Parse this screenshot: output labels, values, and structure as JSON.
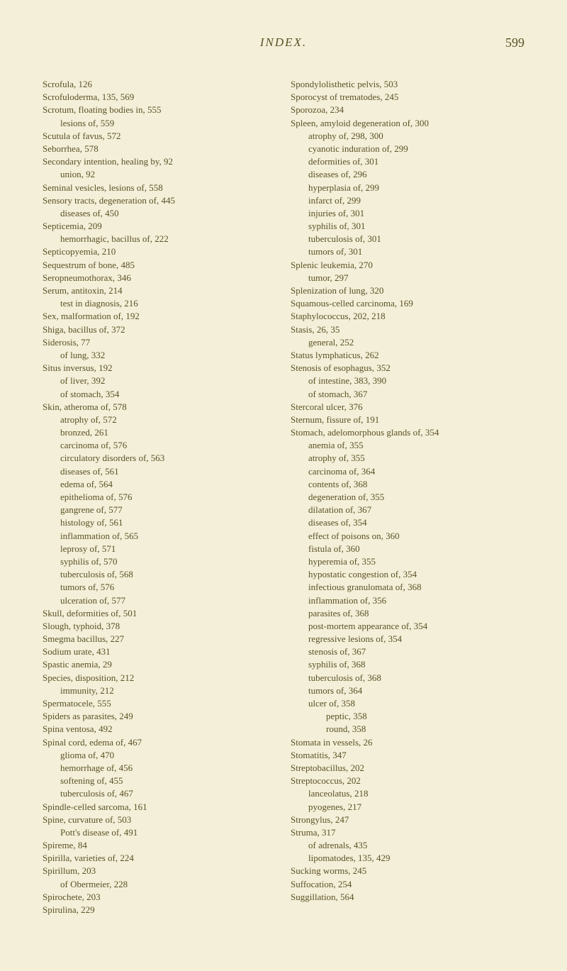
{
  "header": {
    "title": "INDEX.",
    "pageNumber": "599"
  },
  "leftColumn": [
    {
      "text": "Scrofula, 126",
      "indent": 0
    },
    {
      "text": "Scrofuloderma, 135, 569",
      "indent": 0
    },
    {
      "text": "Scrotum, floating bodies in, 555",
      "indent": 0
    },
    {
      "text": "lesions of, 559",
      "indent": 1
    },
    {
      "text": "Scutula of favus, 572",
      "indent": 0
    },
    {
      "text": "Seborrhea, 578",
      "indent": 0
    },
    {
      "text": "Secondary intention, healing by, 92",
      "indent": 0
    },
    {
      "text": "union, 92",
      "indent": 1
    },
    {
      "text": "Seminal vesicles, lesions of, 558",
      "indent": 0
    },
    {
      "text": "Sensory tracts, degeneration of, 445",
      "indent": 0
    },
    {
      "text": "diseases of, 450",
      "indent": 1
    },
    {
      "text": "Septicemia, 209",
      "indent": 0
    },
    {
      "text": "hemorrhagic, bacillus of, 222",
      "indent": 1
    },
    {
      "text": "Septicopyemia, 210",
      "indent": 0
    },
    {
      "text": "Sequestrum of bone, 485",
      "indent": 0
    },
    {
      "text": "Seropneumothorax, 346",
      "indent": 0
    },
    {
      "text": "Serum, antitoxin, 214",
      "indent": 0
    },
    {
      "text": "test in diagnosis, 216",
      "indent": 1
    },
    {
      "text": "Sex, malformation of, 192",
      "indent": 0
    },
    {
      "text": "Shiga, bacillus of, 372",
      "indent": 0
    },
    {
      "text": "Siderosis, 77",
      "indent": 0
    },
    {
      "text": "of lung, 332",
      "indent": 1
    },
    {
      "text": "Situs inversus, 192",
      "indent": 0
    },
    {
      "text": "of liver, 392",
      "indent": 1
    },
    {
      "text": "of stomach, 354",
      "indent": 1
    },
    {
      "text": "Skin, atheroma of, 578",
      "indent": 0
    },
    {
      "text": "atrophy of, 572",
      "indent": 1
    },
    {
      "text": "bronzed, 261",
      "indent": 1
    },
    {
      "text": "carcinoma of, 576",
      "indent": 1
    },
    {
      "text": "circulatory disorders of, 563",
      "indent": 1
    },
    {
      "text": "diseases of, 561",
      "indent": 1
    },
    {
      "text": "edema of, 564",
      "indent": 1
    },
    {
      "text": "epithelioma of, 576",
      "indent": 1
    },
    {
      "text": "gangrene of, 577",
      "indent": 1
    },
    {
      "text": "histology of, 561",
      "indent": 1
    },
    {
      "text": "inflammation of, 565",
      "indent": 1
    },
    {
      "text": "leprosy of, 571",
      "indent": 1
    },
    {
      "text": "syphilis of, 570",
      "indent": 1
    },
    {
      "text": "tuberculosis of, 568",
      "indent": 1
    },
    {
      "text": "tumors of, 576",
      "indent": 1
    },
    {
      "text": "ulceration of, 577",
      "indent": 1
    },
    {
      "text": "Skull, deformities of, 501",
      "indent": 0
    },
    {
      "text": "Slough, typhoid, 378",
      "indent": 0
    },
    {
      "text": "Smegma bacillus, 227",
      "indent": 0
    },
    {
      "text": "Sodium urate, 431",
      "indent": 0
    },
    {
      "text": "Spastic anemia, 29",
      "indent": 0
    },
    {
      "text": "Species, disposition, 212",
      "indent": 0
    },
    {
      "text": "immunity, 212",
      "indent": 1
    },
    {
      "text": "Spermatocele, 555",
      "indent": 0
    },
    {
      "text": "Spiders as parasites, 249",
      "indent": 0
    },
    {
      "text": "Spina ventosa, 492",
      "indent": 0
    },
    {
      "text": "Spinal cord, edema of, 467",
      "indent": 0
    },
    {
      "text": "glioma of, 470",
      "indent": 1
    },
    {
      "text": "hemorrhage of, 456",
      "indent": 1
    },
    {
      "text": "softening of, 455",
      "indent": 1
    },
    {
      "text": "tuberculosis of, 467",
      "indent": 1
    },
    {
      "text": "Spindle-celled sarcoma, 161",
      "indent": 0
    },
    {
      "text": "Spine, curvature of, 503",
      "indent": 0
    },
    {
      "text": "Pott's disease of, 491",
      "indent": 1
    },
    {
      "text": "Spireme, 84",
      "indent": 0
    },
    {
      "text": "Spirilla, varieties of, 224",
      "indent": 0
    },
    {
      "text": "Spirillum, 203",
      "indent": 0
    },
    {
      "text": "of Obermeier, 228",
      "indent": 1
    },
    {
      "text": "Spirochete, 203",
      "indent": 0
    },
    {
      "text": "Spirulina, 229",
      "indent": 0
    }
  ],
  "rightColumn": [
    {
      "text": "Spondylolisthetic pelvis, 503",
      "indent": 0
    },
    {
      "text": "Sporocyst of trematodes, 245",
      "indent": 0
    },
    {
      "text": "Sporozoa, 234",
      "indent": 0
    },
    {
      "text": "Spleen, amyloid degeneration of, 300",
      "indent": 0
    },
    {
      "text": "atrophy of, 298, 300",
      "indent": 1
    },
    {
      "text": "cyanotic induration of, 299",
      "indent": 1
    },
    {
      "text": "deformities of, 301",
      "indent": 1
    },
    {
      "text": "diseases of, 296",
      "indent": 1
    },
    {
      "text": "hyperplasia of, 299",
      "indent": 1
    },
    {
      "text": "infarct of, 299",
      "indent": 1
    },
    {
      "text": "injuries of, 301",
      "indent": 1
    },
    {
      "text": "syphilis of, 301",
      "indent": 1
    },
    {
      "text": "tuberculosis of, 301",
      "indent": 1
    },
    {
      "text": "tumors of, 301",
      "indent": 1
    },
    {
      "text": "Splenic leukemia, 270",
      "indent": 0
    },
    {
      "text": "tumor, 297",
      "indent": 1
    },
    {
      "text": "Splenization of lung, 320",
      "indent": 0
    },
    {
      "text": "Squamous-celled carcinoma, 169",
      "indent": 0
    },
    {
      "text": "Staphylococcus, 202, 218",
      "indent": 0
    },
    {
      "text": "Stasis, 26, 35",
      "indent": 0
    },
    {
      "text": "general, 252",
      "indent": 1
    },
    {
      "text": "Status lymphaticus, 262",
      "indent": 0
    },
    {
      "text": "Stenosis of esophagus, 352",
      "indent": 0
    },
    {
      "text": "of intestine, 383, 390",
      "indent": 1
    },
    {
      "text": "of stomach, 367",
      "indent": 1
    },
    {
      "text": "Stercoral ulcer, 376",
      "indent": 0
    },
    {
      "text": "Sternum, fissure of, 191",
      "indent": 0
    },
    {
      "text": "Stomach, adelomorphous glands of, 354",
      "indent": 0
    },
    {
      "text": "anemia of, 355",
      "indent": 1
    },
    {
      "text": "atrophy of, 355",
      "indent": 1
    },
    {
      "text": "carcinoma of, 364",
      "indent": 1
    },
    {
      "text": "contents of, 368",
      "indent": 1
    },
    {
      "text": "degeneration of, 355",
      "indent": 1
    },
    {
      "text": "dilatation of, 367",
      "indent": 1
    },
    {
      "text": "diseases of, 354",
      "indent": 1
    },
    {
      "text": "effect of poisons on, 360",
      "indent": 1
    },
    {
      "text": "fistula of, 360",
      "indent": 1
    },
    {
      "text": "hyperemia of, 355",
      "indent": 1
    },
    {
      "text": "hypostatic congestion of, 354",
      "indent": 1
    },
    {
      "text": "infectious granulomata of, 368",
      "indent": 1
    },
    {
      "text": "inflammation of, 356",
      "indent": 1
    },
    {
      "text": "parasites of, 368",
      "indent": 1
    },
    {
      "text": "post-mortem appearance of, 354",
      "indent": 1
    },
    {
      "text": "regressive lesions of, 354",
      "indent": 1
    },
    {
      "text": "stenosis of, 367",
      "indent": 1
    },
    {
      "text": "syphilis of, 368",
      "indent": 1
    },
    {
      "text": "tuberculosis of, 368",
      "indent": 1
    },
    {
      "text": "tumors of, 364",
      "indent": 1
    },
    {
      "text": "ulcer of, 358",
      "indent": 1
    },
    {
      "text": "peptic, 358",
      "indent": 2
    },
    {
      "text": "round, 358",
      "indent": 2
    },
    {
      "text": "Stomata in vessels, 26",
      "indent": 0
    },
    {
      "text": "Stomatitis, 347",
      "indent": 0
    },
    {
      "text": "Streptobacillus, 202",
      "indent": 0
    },
    {
      "text": "Streptococcus, 202",
      "indent": 0
    },
    {
      "text": "lanceolatus, 218",
      "indent": 1
    },
    {
      "text": "pyogenes, 217",
      "indent": 1
    },
    {
      "text": "Strongylus, 247",
      "indent": 0
    },
    {
      "text": "Struma, 317",
      "indent": 0
    },
    {
      "text": "of adrenals, 435",
      "indent": 1
    },
    {
      "text": "lipomatodes, 135, 429",
      "indent": 1
    },
    {
      "text": "Sucking worms, 245",
      "indent": 0
    },
    {
      "text": "Suffocation, 254",
      "indent": 0
    },
    {
      "text": "Suggillation, 564",
      "indent": 0
    }
  ]
}
